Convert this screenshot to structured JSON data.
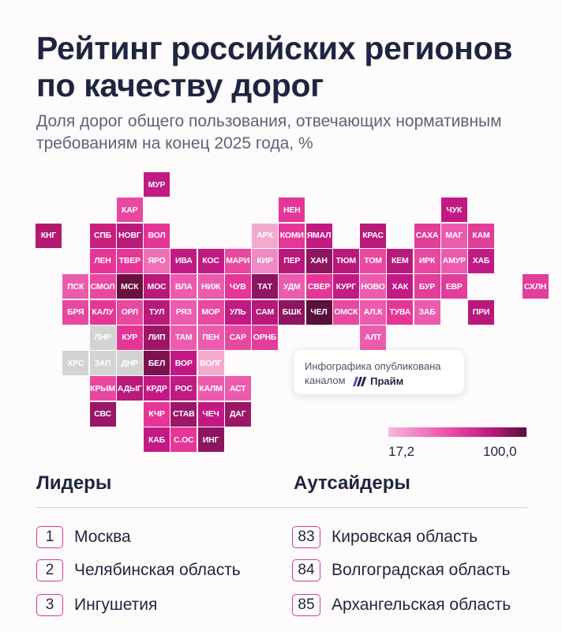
{
  "title_line1": "Рейтинг российских регионов",
  "title_line2": "по качеству дорог",
  "subtitle_line1": "Доля дорог общего пользования, отвечающих нормативным",
  "subtitle_line2": "требованиям на конец 2025 года, %",
  "map_cells": [
    {
      "label": "МУР",
      "col": 4,
      "row": 0,
      "color": "#c21a84"
    },
    {
      "label": "КАР",
      "col": 3,
      "row": 1,
      "color": "#e8489f"
    },
    {
      "label": "НЕН",
      "col": 9,
      "row": 1,
      "color": "#e53697"
    },
    {
      "label": "ЧУК",
      "col": 15,
      "row": 1,
      "color": "#c21a84"
    },
    {
      "label": "КНГ",
      "col": 0,
      "row": 2,
      "color": "#b3196f"
    },
    {
      "label": "СПБ",
      "col": 2,
      "row": 2,
      "color": "#c9207f"
    },
    {
      "label": "НОВГ",
      "col": 3,
      "row": 2,
      "color": "#b8197a"
    },
    {
      "label": "ВОЛ",
      "col": 4,
      "row": 2,
      "color": "#e53697"
    },
    {
      "label": "АРХ",
      "col": 8,
      "row": 2,
      "color": "#f3aacf"
    },
    {
      "label": "КОМИ",
      "col": 9,
      "row": 2,
      "color": "#e53697"
    },
    {
      "label": "ЯМАЛ",
      "col": 10,
      "row": 2,
      "color": "#c21a84"
    },
    {
      "label": "КРАС",
      "col": 12,
      "row": 2,
      "color": "#b8197a"
    },
    {
      "label": "САХА",
      "col": 14,
      "row": 2,
      "color": "#e23d9b"
    },
    {
      "label": "МАГ",
      "col": 15,
      "row": 2,
      "color": "#ec5cae"
    },
    {
      "label": "КАМ",
      "col": 16,
      "row": 2,
      "color": "#e23d9b"
    },
    {
      "label": "ЛЕН",
      "col": 2,
      "row": 3,
      "color": "#e53697"
    },
    {
      "label": "ТВЕР",
      "col": 3,
      "row": 3,
      "color": "#e53697"
    },
    {
      "label": "ЯРО",
      "col": 4,
      "row": 3,
      "color": "#ee71b6"
    },
    {
      "label": "ИВА",
      "col": 5,
      "row": 3,
      "color": "#c21a84"
    },
    {
      "label": "КОС",
      "col": 6,
      "row": 3,
      "color": "#c21a84"
    },
    {
      "label": "МАРИ",
      "col": 7,
      "row": 3,
      "color": "#e8489f"
    },
    {
      "label": "КИР",
      "col": 8,
      "row": 3,
      "color": "#f08ac4"
    },
    {
      "label": "ПЕР",
      "col": 9,
      "row": 3,
      "color": "#b8197a"
    },
    {
      "label": "ХАН",
      "col": 10,
      "row": 3,
      "color": "#8e1560"
    },
    {
      "label": "ТЮМ",
      "col": 11,
      "row": 3,
      "color": "#b8197a"
    },
    {
      "label": "ТОМ",
      "col": 12,
      "row": 3,
      "color": "#e8489f"
    },
    {
      "label": "КЕМ",
      "col": 13,
      "row": 3,
      "color": "#b8197a"
    },
    {
      "label": "ИРК",
      "col": 14,
      "row": 3,
      "color": "#e8489f"
    },
    {
      "label": "АМУР",
      "col": 15,
      "row": 3,
      "color": "#ec5cae"
    },
    {
      "label": "ХАБ",
      "col": 16,
      "row": 3,
      "color": "#c21a84"
    },
    {
      "label": "ПСК",
      "col": 1,
      "row": 4,
      "color": "#ec5cae"
    },
    {
      "label": "СМОЛ",
      "col": 2,
      "row": 4,
      "color": "#e8489f"
    },
    {
      "label": "МСК",
      "col": 3,
      "row": 4,
      "color": "#6a1040"
    },
    {
      "label": "МОС",
      "col": 4,
      "row": 4,
      "color": "#b8197a"
    },
    {
      "label": "ВЛА",
      "col": 5,
      "row": 4,
      "color": "#ec5cae"
    },
    {
      "label": "НИЖ",
      "col": 6,
      "row": 4,
      "color": "#ec5cae"
    },
    {
      "label": "ЧУВ",
      "col": 7,
      "row": 4,
      "color": "#e53697"
    },
    {
      "label": "ТАТ",
      "col": 8,
      "row": 4,
      "color": "#8e1560"
    },
    {
      "label": "УДМ",
      "col": 9,
      "row": 4,
      "color": "#ec5cae"
    },
    {
      "label": "СВЕР",
      "col": 10,
      "row": 4,
      "color": "#e53697"
    },
    {
      "label": "КУРГ",
      "col": 11,
      "row": 4,
      "color": "#c21a84"
    },
    {
      "label": "НОВО",
      "col": 12,
      "row": 4,
      "color": "#ec5cae"
    },
    {
      "label": "ХАК",
      "col": 13,
      "row": 4,
      "color": "#c21a84"
    },
    {
      "label": "БУР",
      "col": 14,
      "row": 4,
      "color": "#e23d9b"
    },
    {
      "label": "ЕВР",
      "col": 15,
      "row": 4,
      "color": "#e23d9b"
    },
    {
      "label": "СХЛН",
      "col": 18,
      "row": 4,
      "color": "#e23d9b"
    },
    {
      "label": "БРЯ",
      "col": 1,
      "row": 5,
      "color": "#e8489f"
    },
    {
      "label": "КАЛУ",
      "col": 2,
      "row": 5,
      "color": "#e53697"
    },
    {
      "label": "ОРЛ",
      "col": 3,
      "row": 5,
      "color": "#e8489f"
    },
    {
      "label": "ТУЛ",
      "col": 4,
      "row": 5,
      "color": "#b8197a"
    },
    {
      "label": "РЯЗ",
      "col": 5,
      "row": 5,
      "color": "#ec5cae"
    },
    {
      "label": "МОР",
      "col": 6,
      "row": 5,
      "color": "#e8489f"
    },
    {
      "label": "УЛЬ",
      "col": 7,
      "row": 5,
      "color": "#c21a84"
    },
    {
      "label": "САМ",
      "col": 8,
      "row": 5,
      "color": "#b8197a"
    },
    {
      "label": "БШК",
      "col": 9,
      "row": 5,
      "color": "#8e1560"
    },
    {
      "label": "ЧЕЛ",
      "col": 10,
      "row": 5,
      "color": "#5a0f3c"
    },
    {
      "label": "ОМСК",
      "col": 11,
      "row": 5,
      "color": "#e8489f"
    },
    {
      "label": "АЛ.К",
      "col": 12,
      "row": 5,
      "color": "#ec5cae"
    },
    {
      "label": "ТУВА",
      "col": 13,
      "row": 5,
      "color": "#e53697"
    },
    {
      "label": "ЗАБ",
      "col": 14,
      "row": 5,
      "color": "#ec5cae"
    },
    {
      "label": "ПРИ",
      "col": 16,
      "row": 5,
      "color": "#b8197a"
    },
    {
      "label": "ЛНР",
      "col": 2,
      "row": 6,
      "color": "#d3d3d3"
    },
    {
      "label": "КУР",
      "col": 3,
      "row": 6,
      "color": "#e53697"
    },
    {
      "label": "ЛИП",
      "col": 4,
      "row": 6,
      "color": "#9c1668"
    },
    {
      "label": "ТАМ",
      "col": 5,
      "row": 6,
      "color": "#ec5cae"
    },
    {
      "label": "ПЕН",
      "col": 6,
      "row": 6,
      "color": "#ec5cae"
    },
    {
      "label": "САР",
      "col": 7,
      "row": 6,
      "color": "#e8489f"
    },
    {
      "label": "ОРНБ",
      "col": 8,
      "row": 6,
      "color": "#e23d9b"
    },
    {
      "label": "АЛТ",
      "col": 12,
      "row": 6,
      "color": "#ec5cae"
    },
    {
      "label": "ХРС",
      "col": 1,
      "row": 7,
      "color": "#d3d3d3"
    },
    {
      "label": "ЗАП",
      "col": 2,
      "row": 7,
      "color": "#d3d3d3"
    },
    {
      "label": "ДНР",
      "col": 3,
      "row": 7,
      "color": "#d3d3d3"
    },
    {
      "label": "БЕЛ",
      "col": 4,
      "row": 7,
      "color": "#7c1250"
    },
    {
      "label": "ВОР",
      "col": 5,
      "row": 7,
      "color": "#c21a84"
    },
    {
      "label": "ВОЛГ",
      "col": 6,
      "row": 7,
      "color": "#f3aacf"
    },
    {
      "label": "КРЫМ",
      "col": 2,
      "row": 8,
      "color": "#e8489f"
    },
    {
      "label": "АДЫГ",
      "col": 3,
      "row": 8,
      "color": "#b8197a"
    },
    {
      "label": "КРДР",
      "col": 4,
      "row": 8,
      "color": "#c21a84"
    },
    {
      "label": "РОС",
      "col": 5,
      "row": 8,
      "color": "#c21a84"
    },
    {
      "label": "КАЛМ",
      "col": 6,
      "row": 8,
      "color": "#ec5cae"
    },
    {
      "label": "АСТ",
      "col": 7,
      "row": 8,
      "color": "#ec5cae"
    },
    {
      "label": "СВС",
      "col": 2,
      "row": 9,
      "color": "#9c1668"
    },
    {
      "label": "КЧР",
      "col": 4,
      "row": 9,
      "color": "#e53697"
    },
    {
      "label": "СТАВ",
      "col": 5,
      "row": 9,
      "color": "#9c1668"
    },
    {
      "label": "ЧЕЧ",
      "col": 6,
      "row": 9,
      "color": "#c21a84"
    },
    {
      "label": "ДАГ",
      "col": 7,
      "row": 9,
      "color": "#9c1668"
    },
    {
      "label": "КАБ",
      "col": 4,
      "row": 10,
      "color": "#c21a84"
    },
    {
      "label": "С.ОС",
      "col": 5,
      "row": 10,
      "color": "#e53697"
    },
    {
      "label": "ИНГ",
      "col": 6,
      "row": 10,
      "color": "#8e1560"
    }
  ],
  "note": {
    "line1": "Инфографика опубликована",
    "line2": "каналом",
    "brand": "Прайм"
  },
  "legend": {
    "min": "17,2",
    "max": "100,0"
  },
  "leaders": {
    "heading": "Лидеры",
    "items": [
      {
        "rank": "1",
        "name": "Москва"
      },
      {
        "rank": "2",
        "name": "Челябинская область"
      },
      {
        "rank": "3",
        "name": "Ингушетия"
      }
    ]
  },
  "outsiders": {
    "heading": "Аутсайдеры",
    "items": [
      {
        "rank": "83",
        "name": "Кировская область"
      },
      {
        "rank": "84",
        "name": "Волгоградская область"
      },
      {
        "rank": "85",
        "name": "Архангельская область"
      }
    ]
  }
}
